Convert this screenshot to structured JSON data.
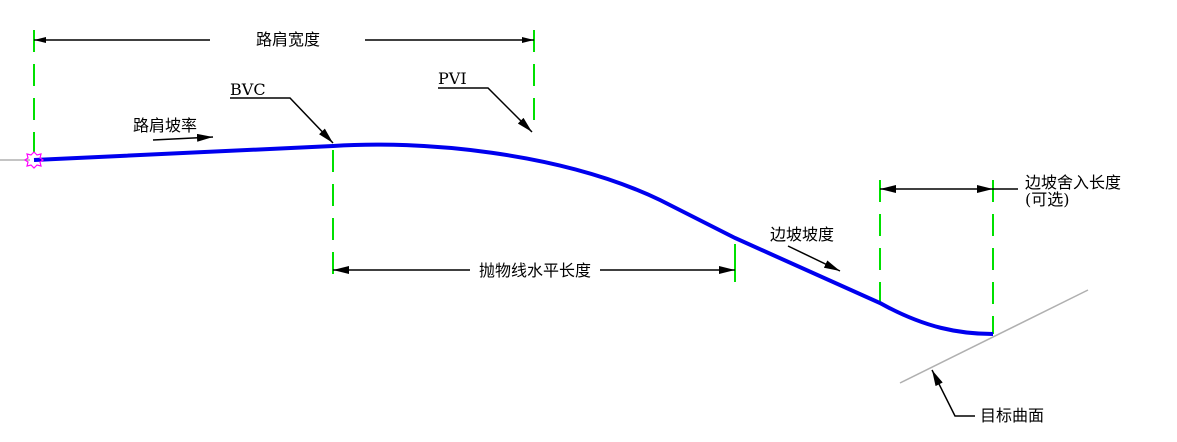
{
  "labels": {
    "shoulder_width": "路肩宽度",
    "bvc": "BVC",
    "pvi": "PVI",
    "shoulder_slope": "路肩坡率",
    "parabola_length": "抛物线水平长度",
    "side_slope": "边坡坡度",
    "rounding_length": "边坡舍入长度",
    "optional": "(可选)",
    "target_surface": "目标曲面"
  },
  "colors": {
    "profile": "#0000ee",
    "extension_lines": "#00e000",
    "marker": "#ff00ff",
    "target_surface": "#b0b0b0",
    "dimension": "#000000"
  }
}
